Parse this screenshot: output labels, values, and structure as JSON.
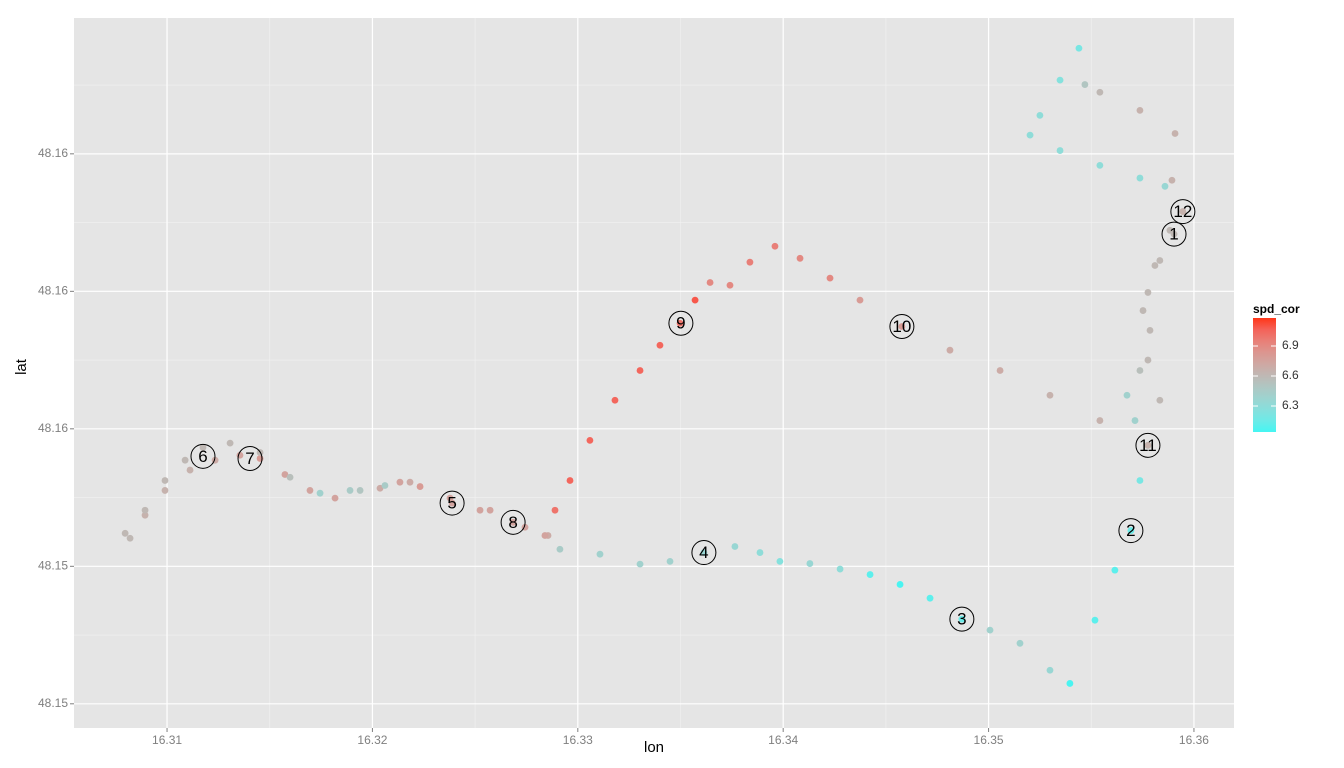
{
  "chart_data": {
    "type": "scatter",
    "x_label": "lon",
    "y_label": "lat",
    "xlim": [
      16.30547,
      16.36195
    ],
    "ylim": [
      48.15206,
      48.16497
    ],
    "xticks": [
      16.31,
      16.32,
      16.33,
      16.34,
      16.35,
      16.36
    ],
    "yticks": [
      {
        "value": 48.1525,
        "label": "48.15"
      },
      {
        "value": 48.155,
        "label": "48.15"
      },
      {
        "value": 48.1575,
        "label": "48.16"
      },
      48.16,
      {
        "value": 48.1625,
        "label": "48.16"
      }
    ],
    "grid": true,
    "x": [
      16.35903,
      16.35834,
      16.35776,
      16.35786,
      16.35737,
      16.35674,
      16.35713,
      16.35776,
      16.35737,
      16.35693,
      16.35615,
      16.35518,
      16.35396,
      16.35299,
      16.35153,
      16.35007,
      16.3487,
      16.34715,
      16.34569,
      16.34423,
      16.34277,
      16.3413,
      16.33984,
      16.33887,
      16.33765,
      16.33614,
      16.33449,
      16.33303,
      16.33108,
      16.32913,
      16.32855,
      16.32685,
      16.32524,
      16.32388,
      16.32232,
      16.32134,
      16.32037,
      16.3194,
      16.31818,
      16.31696,
      16.31574,
      16.31453,
      16.31355,
      16.31234,
      16.31112,
      16.3099,
      16.30893,
      16.3082,
      16.30796,
      16.30893,
      16.3099,
      16.31088,
      16.31175,
      16.31307,
      16.31453,
      16.31599,
      16.31745,
      16.31891,
      16.32061,
      16.32183,
      16.32378,
      16.32573,
      16.32743,
      16.3284,
      16.32889,
      16.32962,
      16.33059,
      16.33181,
      16.33303,
      16.334,
      16.33498,
      16.33571,
      16.33644,
      16.33741,
      16.33838,
      16.3396,
      16.34082,
      16.34228,
      16.34374,
      16.34578,
      16.34812,
      16.35056,
      16.35299,
      16.35542,
      16.35776,
      16.35834,
      16.35776,
      16.35752,
      16.3581,
      16.35883,
      16.35946,
      16.35893,
      16.35908,
      16.35737,
      16.35542,
      16.35469,
      16.3544,
      16.35348,
      16.3525,
      16.35202,
      16.35348,
      16.35542,
      16.35737,
      16.35859
    ],
    "y": [
      48.16104,
      48.16056,
      48.15998,
      48.15929,
      48.15856,
      48.15811,
      48.15765,
      48.1572,
      48.15656,
      48.15565,
      48.15493,
      48.15402,
      48.15287,
      48.15311,
      48.1536,
      48.15384,
      48.15404,
      48.15442,
      48.15467,
      48.15485,
      48.15495,
      48.15505,
      48.15509,
      48.15525,
      48.15536,
      48.15525,
      48.15509,
      48.15504,
      48.15522,
      48.15531,
      48.15556,
      48.1558,
      48.15602,
      48.15615,
      48.15645,
      48.15653,
      48.15642,
      48.15638,
      48.15624,
      48.15638,
      48.15667,
      48.15696,
      48.15702,
      48.15693,
      48.15675,
      48.15638,
      48.15593,
      48.15551,
      48.1556,
      48.15602,
      48.15656,
      48.15693,
      48.15716,
      48.15724,
      48.15707,
      48.15662,
      48.15633,
      48.15638,
      48.15647,
      48.15653,
      48.15624,
      48.15602,
      48.15571,
      48.15556,
      48.15602,
      48.15656,
      48.15729,
      48.15802,
      48.15856,
      48.15902,
      48.15942,
      48.15984,
      48.16016,
      48.16011,
      48.16053,
      48.16082,
      48.1606,
      48.16024,
      48.15984,
      48.15936,
      48.15893,
      48.15856,
      48.15811,
      48.15765,
      48.1572,
      48.15802,
      48.15875,
      48.15965,
      48.16047,
      48.16111,
      48.16145,
      48.16202,
      48.16287,
      48.16329,
      48.16362,
      48.16376,
      48.16442,
      48.16384,
      48.1632,
      48.16284,
      48.16256,
      48.16229,
      48.16206,
      48.16191
    ],
    "color_values": [
      6.6,
      6.6,
      6.6,
      6.6,
      6.55,
      6.4,
      6.4,
      6.3,
      6.2,
      6.15,
      6.1,
      6.1,
      6.05,
      6.35,
      6.4,
      6.4,
      6.15,
      6.1,
      6.05,
      6.1,
      6.3,
      6.35,
      6.25,
      6.3,
      6.35,
      6.35,
      6.4,
      6.4,
      6.4,
      6.45,
      6.7,
      6.75,
      6.75,
      6.75,
      6.8,
      6.75,
      6.7,
      6.5,
      6.75,
      6.75,
      6.75,
      6.8,
      6.75,
      6.7,
      6.65,
      6.65,
      6.65,
      6.6,
      6.6,
      6.6,
      6.6,
      6.6,
      6.6,
      6.6,
      6.6,
      6.55,
      6.4,
      6.45,
      6.45,
      6.7,
      6.75,
      6.75,
      6.75,
      6.75,
      7.0,
      7.05,
      7.05,
      7.05,
      7.05,
      7.05,
      7.0,
      7.1,
      6.9,
      6.9,
      6.95,
      6.95,
      6.9,
      6.9,
      6.8,
      6.8,
      6.7,
      6.7,
      6.65,
      6.65,
      6.65,
      6.6,
      6.6,
      6.6,
      6.6,
      6.6,
      6.65,
      6.65,
      6.65,
      6.65,
      6.6,
      6.5,
      6.2,
      6.25,
      6.3,
      6.3,
      6.3,
      6.3,
      6.3,
      6.35
    ],
    "colorbar": {
      "title": "spd_cor",
      "lim": [
        6.04,
        7.18
      ],
      "ticks": [
        6.3,
        6.6,
        6.9
      ],
      "low_color": "#45f5f2",
      "high_color": "#ff3518"
    },
    "labels": [
      {
        "text": "1",
        "x": 16.35903,
        "y": 48.16104
      },
      {
        "text": "2",
        "x": 16.35693,
        "y": 48.15565
      },
      {
        "text": "3",
        "x": 16.3487,
        "y": 48.15404
      },
      {
        "text": "4",
        "x": 16.33614,
        "y": 48.15525
      },
      {
        "text": "5",
        "x": 16.32388,
        "y": 48.15615
      },
      {
        "text": "6",
        "x": 16.31175,
        "y": 48.157
      },
      {
        "text": "7",
        "x": 16.31404,
        "y": 48.15696
      },
      {
        "text": "8",
        "x": 16.32685,
        "y": 48.1558
      },
      {
        "text": "9",
        "x": 16.33502,
        "y": 48.15942
      },
      {
        "text": "10",
        "x": 16.34578,
        "y": 48.15936
      },
      {
        "text": "11",
        "x": 16.35776,
        "y": 48.1572
      },
      {
        "text": "12",
        "x": 16.35946,
        "y": 48.16145
      }
    ]
  }
}
